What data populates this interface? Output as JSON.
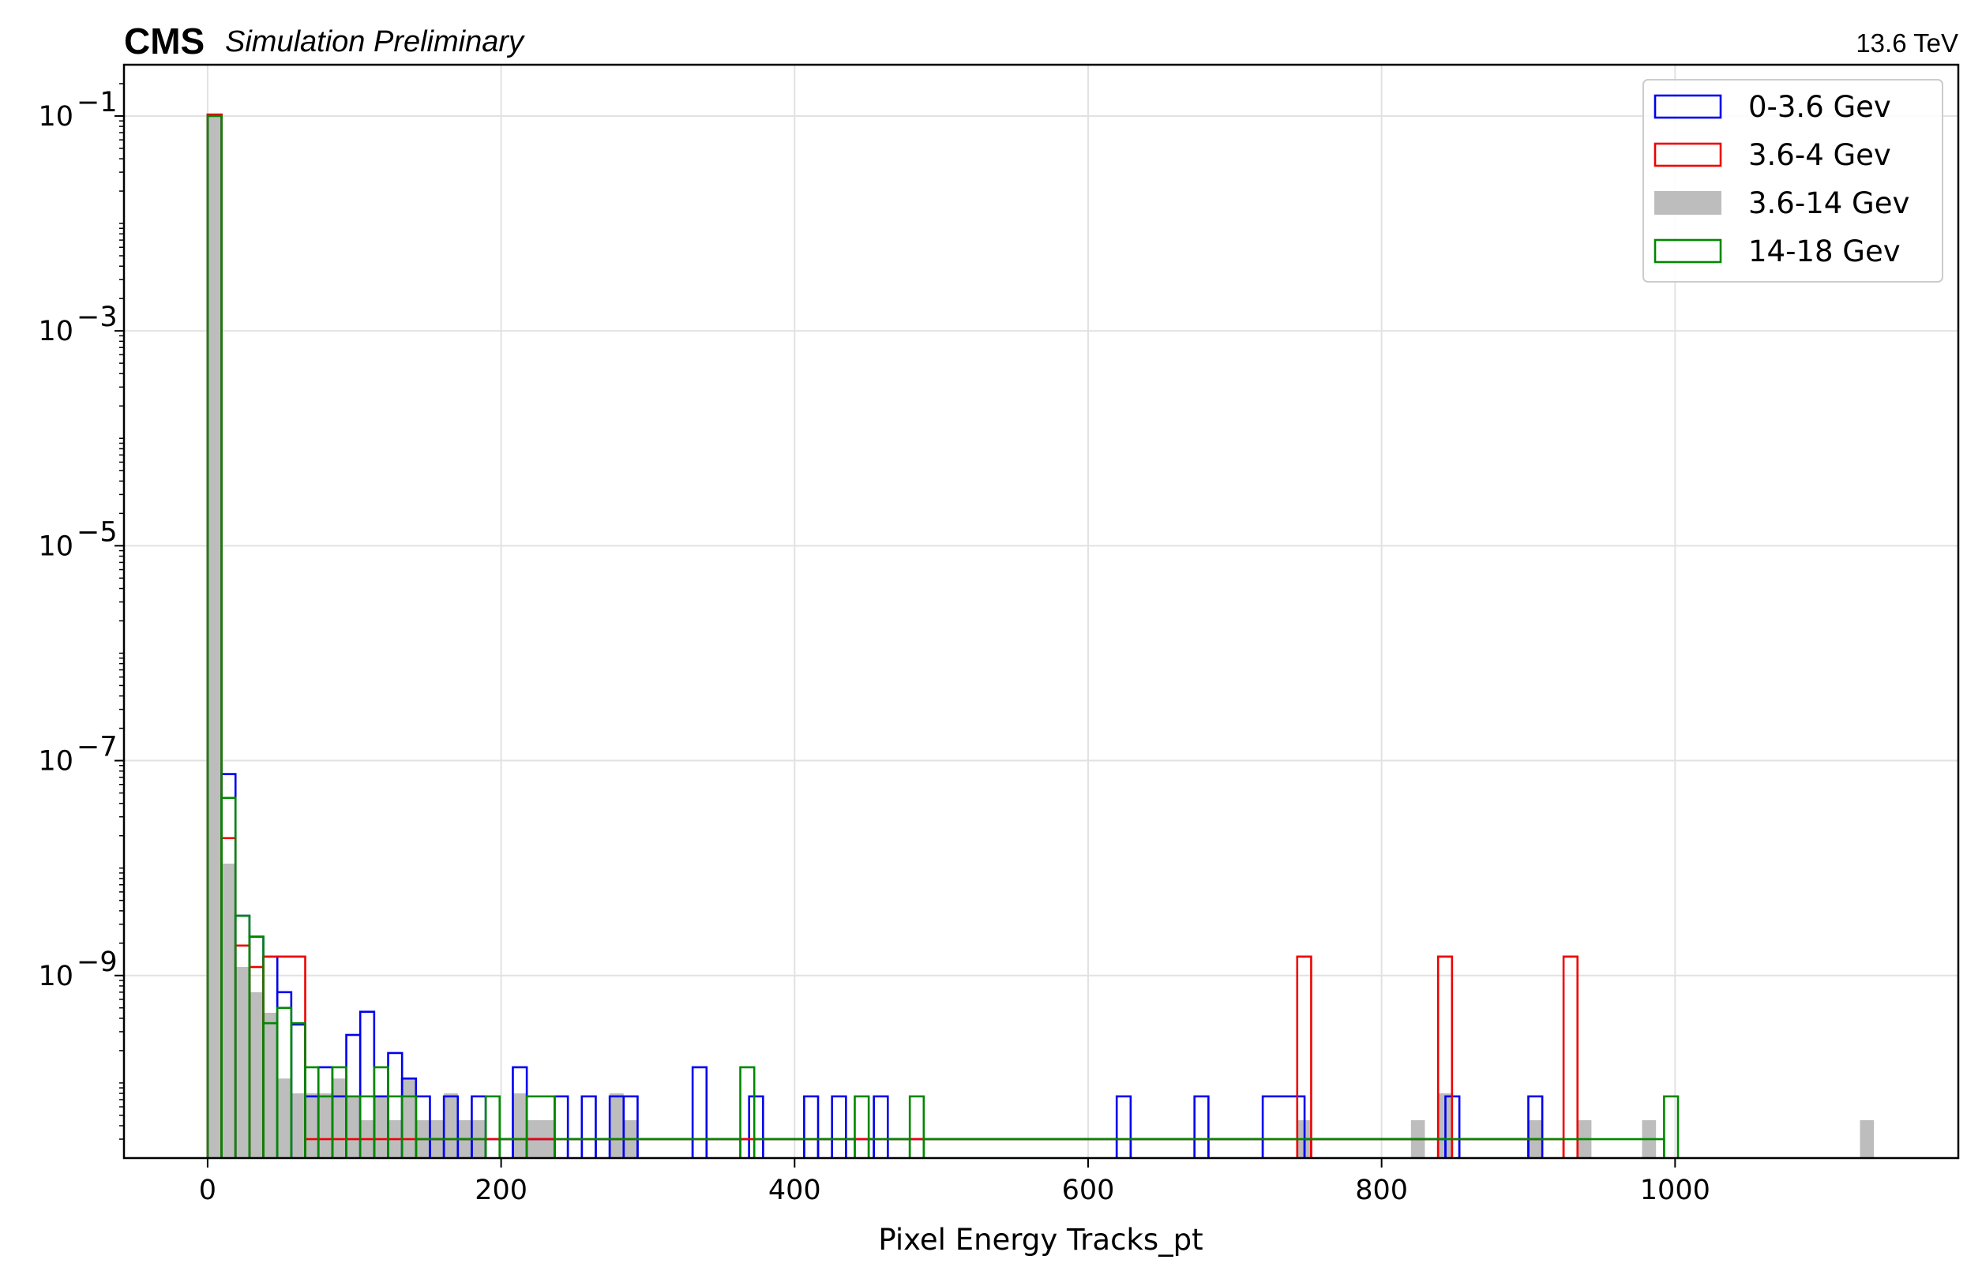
{
  "header": {
    "experiment": "CMS",
    "status": "Simulation Preliminary",
    "energy": "13.6 TeV"
  },
  "chart_data": {
    "type": "histogram",
    "xlabel": "Pixel Energy Tracks_pt",
    "ylabel": "",
    "xlim": [
      -57,
      1193
    ],
    "ylim": [
      2e-11,
      0.3
    ],
    "yscale": "log",
    "xticks": [
      0,
      200,
      400,
      600,
      800,
      1000
    ],
    "xtick_labels": [
      "0",
      "200",
      "400",
      "600",
      "800",
      "1000"
    ],
    "yticks": [
      0.1,
      0.001,
      1e-05,
      1e-07,
      1e-09
    ],
    "ytick_labels": [
      {
        "base": "10",
        "exp": "−1"
      },
      {
        "base": "10",
        "exp": "−3"
      },
      {
        "base": "10",
        "exp": "−5"
      },
      {
        "base": "10",
        "exp": "−7"
      },
      {
        "base": "10",
        "exp": "−9"
      }
    ],
    "grid": true,
    "legend_position": "top-right",
    "series": [
      {
        "name": "0-3.6 Gev",
        "style": "step",
        "color": "#0000ee",
        "bins": [
          [
            0,
            9.5,
            0.103
          ],
          [
            9.5,
            19,
            7.5e-08
          ],
          [
            19,
            28.5,
            3.6e-09
          ],
          [
            28.5,
            38,
            2.3e-09
          ],
          [
            38,
            47.5,
            1.5e-09
          ],
          [
            47.5,
            57,
            7e-10
          ],
          [
            57,
            66.5,
            3.5e-10
          ],
          [
            66.5,
            75.5,
            7.5e-11
          ],
          [
            75.5,
            85,
            1.4e-10
          ],
          [
            85,
            94.5,
            7.5e-11
          ],
          [
            94.5,
            104,
            2.8e-10
          ],
          [
            104,
            113.5,
            4.6e-10
          ],
          [
            113.5,
            123,
            7.5e-11
          ],
          [
            123,
            132.5,
            1.9e-10
          ],
          [
            132.5,
            142,
            1.1e-10
          ],
          [
            142,
            151.5,
            7.5e-11
          ],
          [
            151.5,
            161,
            3e-11
          ],
          [
            161,
            170.5,
            7.5e-11
          ],
          [
            170.5,
            180,
            3e-11
          ],
          [
            180,
            189.5,
            7.5e-11
          ],
          [
            189.5,
            208,
            3e-11
          ],
          [
            208,
            217.5,
            1.4e-10
          ],
          [
            217.5,
            236.5,
            3e-11
          ],
          [
            236.5,
            245.5,
            7.5e-11
          ],
          [
            245.5,
            255,
            3e-11
          ],
          [
            255,
            264.5,
            7.5e-11
          ],
          [
            264.5,
            274,
            3e-11
          ],
          [
            274,
            283.5,
            7.5e-11
          ],
          [
            283.5,
            293,
            7.5e-11
          ],
          [
            293,
            330.5,
            3e-11
          ],
          [
            330.5,
            340,
            1.4e-10
          ],
          [
            340,
            369,
            3e-11
          ],
          [
            369,
            378.5,
            7.5e-11
          ],
          [
            378.5,
            406.5,
            3e-11
          ],
          [
            406.5,
            416,
            7.5e-11
          ],
          [
            416,
            425.5,
            3e-11
          ],
          [
            425.5,
            435,
            7.5e-11
          ],
          [
            435,
            454,
            3e-11
          ],
          [
            454,
            463.5,
            7.5e-11
          ],
          [
            463.5,
            619.5,
            3e-11
          ],
          [
            619.5,
            629,
            7.5e-11
          ],
          [
            629,
            672.5,
            3e-11
          ],
          [
            672.5,
            682,
            7.5e-11
          ],
          [
            682,
            719,
            3e-11
          ],
          [
            719,
            747.5,
            7.5e-11
          ],
          [
            747.5,
            843.5,
            3e-11
          ],
          [
            843.5,
            853,
            7.5e-11
          ],
          [
            853,
            900,
            3e-11
          ],
          [
            900,
            909.5,
            7.5e-11
          ]
        ]
      },
      {
        "name": "3.6-4 Gev",
        "style": "step",
        "color": "#ee0000",
        "bins": [
          [
            0,
            9.5,
            0.103
          ],
          [
            9.5,
            19,
            1.9e-08
          ],
          [
            19,
            28.5,
            1.9e-09
          ],
          [
            28.5,
            38,
            1.2e-09
          ],
          [
            38,
            66.5,
            1.5e-09
          ],
          [
            66.5,
            742.5,
            3e-11
          ],
          [
            742.5,
            752,
            1.5e-09
          ],
          [
            752,
            838.5,
            3e-11
          ],
          [
            838.5,
            848,
            1.5e-09
          ],
          [
            848,
            924,
            3e-11
          ],
          [
            924,
            933.5,
            1.5e-09
          ]
        ]
      },
      {
        "name": "3.6-14 Gev",
        "style": "filled",
        "color": "#bdbdbd",
        "bins": [
          [
            0,
            9.5,
            0.1
          ],
          [
            9.5,
            19,
            1.1e-08
          ],
          [
            19,
            28.5,
            1.2e-09
          ],
          [
            28.5,
            38,
            7e-10
          ],
          [
            38,
            47.5,
            4.5e-10
          ],
          [
            47.5,
            57,
            1.1e-10
          ],
          [
            57,
            66.5,
            8e-11
          ],
          [
            66.5,
            85,
            8e-11
          ],
          [
            85,
            94.5,
            1.1e-10
          ],
          [
            94.5,
            104,
            7.5e-11
          ],
          [
            104,
            113.5,
            4.5e-11
          ],
          [
            113.5,
            123,
            7.5e-11
          ],
          [
            123,
            132.5,
            4.5e-11
          ],
          [
            132.5,
            142,
            1.1e-10
          ],
          [
            142,
            151.5,
            4.5e-11
          ],
          [
            151.5,
            161,
            4.5e-11
          ],
          [
            161,
            170.5,
            8e-11
          ],
          [
            170.5,
            189.5,
            4.5e-11
          ],
          [
            208,
            217.5,
            8e-11
          ],
          [
            217.5,
            236.5,
            4.5e-11
          ],
          [
            274,
            283.5,
            8e-11
          ],
          [
            283.5,
            293,
            4.5e-11
          ],
          [
            742.5,
            752,
            4.5e-11
          ],
          [
            820,
            829.5,
            4.5e-11
          ],
          [
            838.5,
            848,
            8e-11
          ],
          [
            900,
            909.5,
            4.5e-11
          ],
          [
            933.5,
            943,
            4.5e-11
          ],
          [
            977.5,
            987,
            4.5e-11
          ],
          [
            1126,
            1135.5,
            4.5e-11
          ]
        ]
      },
      {
        "name": "14-18 Gev",
        "style": "step",
        "color": "#008800",
        "bins": [
          [
            0,
            9.5,
            0.1
          ],
          [
            9.5,
            19,
            4.5e-08
          ],
          [
            19,
            28.5,
            3.6e-09
          ],
          [
            28.5,
            38,
            2.3e-09
          ],
          [
            38,
            47.5,
            3.6e-10
          ],
          [
            47.5,
            57,
            5e-10
          ],
          [
            57,
            66.5,
            3.6e-10
          ],
          [
            66.5,
            75.5,
            1.4e-10
          ],
          [
            75.5,
            85,
            7.5e-11
          ],
          [
            85,
            94.5,
            1.4e-10
          ],
          [
            94.5,
            104,
            7.5e-11
          ],
          [
            104,
            113.5,
            7.5e-11
          ],
          [
            113.5,
            123,
            1.4e-10
          ],
          [
            123,
            132.5,
            7.5e-11
          ],
          [
            132.5,
            142,
            7.5e-11
          ],
          [
            142,
            189.5,
            3e-11
          ],
          [
            189.5,
            199,
            7.5e-11
          ],
          [
            199,
            217.5,
            3e-11
          ],
          [
            217.5,
            236.5,
            7.5e-11
          ],
          [
            236.5,
            363,
            3e-11
          ],
          [
            363,
            372.5,
            1.4e-10
          ],
          [
            372.5,
            441,
            3e-11
          ],
          [
            441,
            450.5,
            7.5e-11
          ],
          [
            450.5,
            478.5,
            3e-11
          ],
          [
            478.5,
            488,
            7.5e-11
          ],
          [
            488,
            992.5,
            3e-11
          ],
          [
            992.5,
            1002,
            7.5e-11
          ]
        ]
      }
    ]
  }
}
